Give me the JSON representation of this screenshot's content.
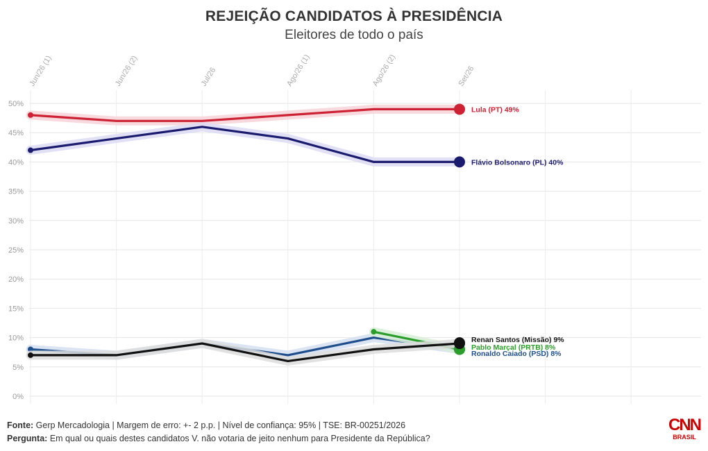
{
  "header": {
    "title": "REJEIÇÃO CANDIDATOS À PRESIDÊNCIA",
    "subtitle": "Eleitores de todo o país"
  },
  "footer": {
    "source_label": "Fonte:",
    "source_text": "Gerp Mercadologia | Margem de erro: +- 2 p.p. | Nível de confiança: 95% | TSE: BR-00251/2026",
    "question_label": "Pergunta:",
    "question_text": "Em qual ou quais destes candidatos V. não votaria de jeito nenhum para Presidente da República?"
  },
  "logo": {
    "text": "CNN",
    "sub": "BRASIL",
    "color": "#cc0000"
  },
  "chart_data": {
    "type": "line",
    "x": [
      "Jun/26 (1)",
      "Jun/26 (2)",
      "Jul/26",
      "Ago/26 (1)",
      "Ago/26 (2)",
      "Set/26"
    ],
    "ylim": [
      0,
      50
    ],
    "y_ticks": [
      "0%",
      "5%",
      "10%",
      "15%",
      "20%",
      "25%",
      "30%",
      "35%",
      "40%",
      "45%",
      "50%"
    ],
    "y_tick_values": [
      0,
      5,
      10,
      15,
      20,
      25,
      30,
      35,
      40,
      45,
      50
    ],
    "grid": true,
    "series": [
      {
        "name": "Lula (PT)",
        "end_label": "Lula (PT) 49%",
        "color": "#cc2233",
        "band": "#f7d3d8",
        "values": [
          48,
          47,
          47,
          48,
          49,
          49
        ]
      },
      {
        "name": "Flávio Bolsonaro (PL)",
        "end_label": "Flávio Bolsonaro (PL) 40%",
        "color": "#1a1a6e",
        "band": "#dcdaf3",
        "values": [
          42,
          44,
          46,
          44,
          40,
          40
        ]
      },
      {
        "name": "Ronaldo Caiado (PSD)",
        "end_label": "Ronaldo Caiado (PSD) 8%",
        "color": "#1f4e8c",
        "band": "#d5dff0",
        "values": [
          8,
          7,
          9,
          7,
          10,
          8
        ]
      },
      {
        "name": "Pablo Marçal (PRTB)",
        "end_label": "Pablo Marçal (PRTB) 8%",
        "color": "#2a9d2a",
        "band": "#d7efd7",
        "values": [
          null,
          null,
          null,
          null,
          11,
          8
        ]
      },
      {
        "name": "Renan Santos (Missão)",
        "end_label": "Renan Santos (Missão) 9%",
        "color": "#111111",
        "band": "#dddddd",
        "values": [
          7,
          7,
          9,
          6,
          8,
          9
        ]
      }
    ]
  }
}
